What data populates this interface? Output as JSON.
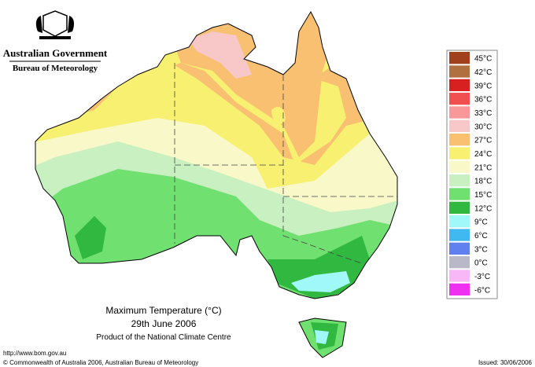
{
  "header": {
    "government": "Australian Government",
    "bureau": "Bureau of Meteorology"
  },
  "legend": [
    {
      "label": "45°C",
      "color": "#a0401c"
    },
    {
      "label": "42°C",
      "color": "#b07040"
    },
    {
      "label": "39°C",
      "color": "#d82020"
    },
    {
      "label": "36°C",
      "color": "#f05050"
    },
    {
      "label": "33°C",
      "color": "#f89898"
    },
    {
      "label": "30°C",
      "color": "#f8c8c8"
    },
    {
      "label": "27°C",
      "color": "#f8c070"
    },
    {
      "label": "24°C",
      "color": "#f8f070"
    },
    {
      "label": "21°C",
      "color": "#f8f8c8"
    },
    {
      "label": "18°C",
      "color": "#c8f0c0"
    },
    {
      "label": "15°C",
      "color": "#70e070"
    },
    {
      "label": "12°C",
      "color": "#30b840"
    },
    {
      "label": "9°C",
      "color": "#a0f8f8"
    },
    {
      "label": "6°C",
      "color": "#40b8f0"
    },
    {
      "label": "3°C",
      "color": "#6080f0"
    },
    {
      "label": "0°C",
      "color": "#b8b8c8"
    },
    {
      "label": "-3°C",
      "color": "#f8b8f8"
    },
    {
      "label": "-6°C",
      "color": "#f030f0"
    }
  ],
  "title": {
    "line1": "Maximum Temperature (°C)",
    "line2": "29th June 2006",
    "line3": "Product of the National Climate Centre"
  },
  "footer": {
    "url": "http://www.bom.gov.au",
    "copyright": "© Commonwealth of Australia 2006, Australian Bureau of Meteorology",
    "issued": "Issued: 30/06/2006"
  }
}
